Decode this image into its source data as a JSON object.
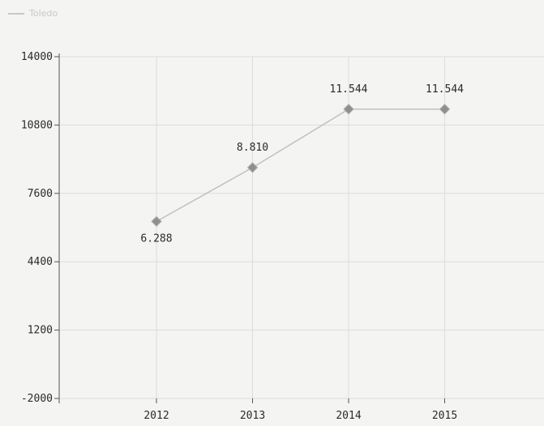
{
  "chart_data": {
    "type": "line",
    "legend": {
      "position": "top-left"
    },
    "x": [
      "2012",
      "2013",
      "2014",
      "2015"
    ],
    "series": [
      {
        "name": "Toledo",
        "values": [
          6288,
          8810,
          11544,
          11544
        ],
        "labels": [
          "6.288",
          "8.810",
          "11.544",
          "11.544"
        ],
        "color": "#c0c0c0",
        "marker_color": "#8f8f8f"
      }
    ],
    "yticks": [
      "-2000",
      "1200",
      "4400",
      "7600",
      "10800",
      "14000"
    ],
    "ylim": [
      -2000,
      14000
    ],
    "grid": true,
    "grid_color": "#dcdcdc",
    "axis_color": "#555555"
  }
}
